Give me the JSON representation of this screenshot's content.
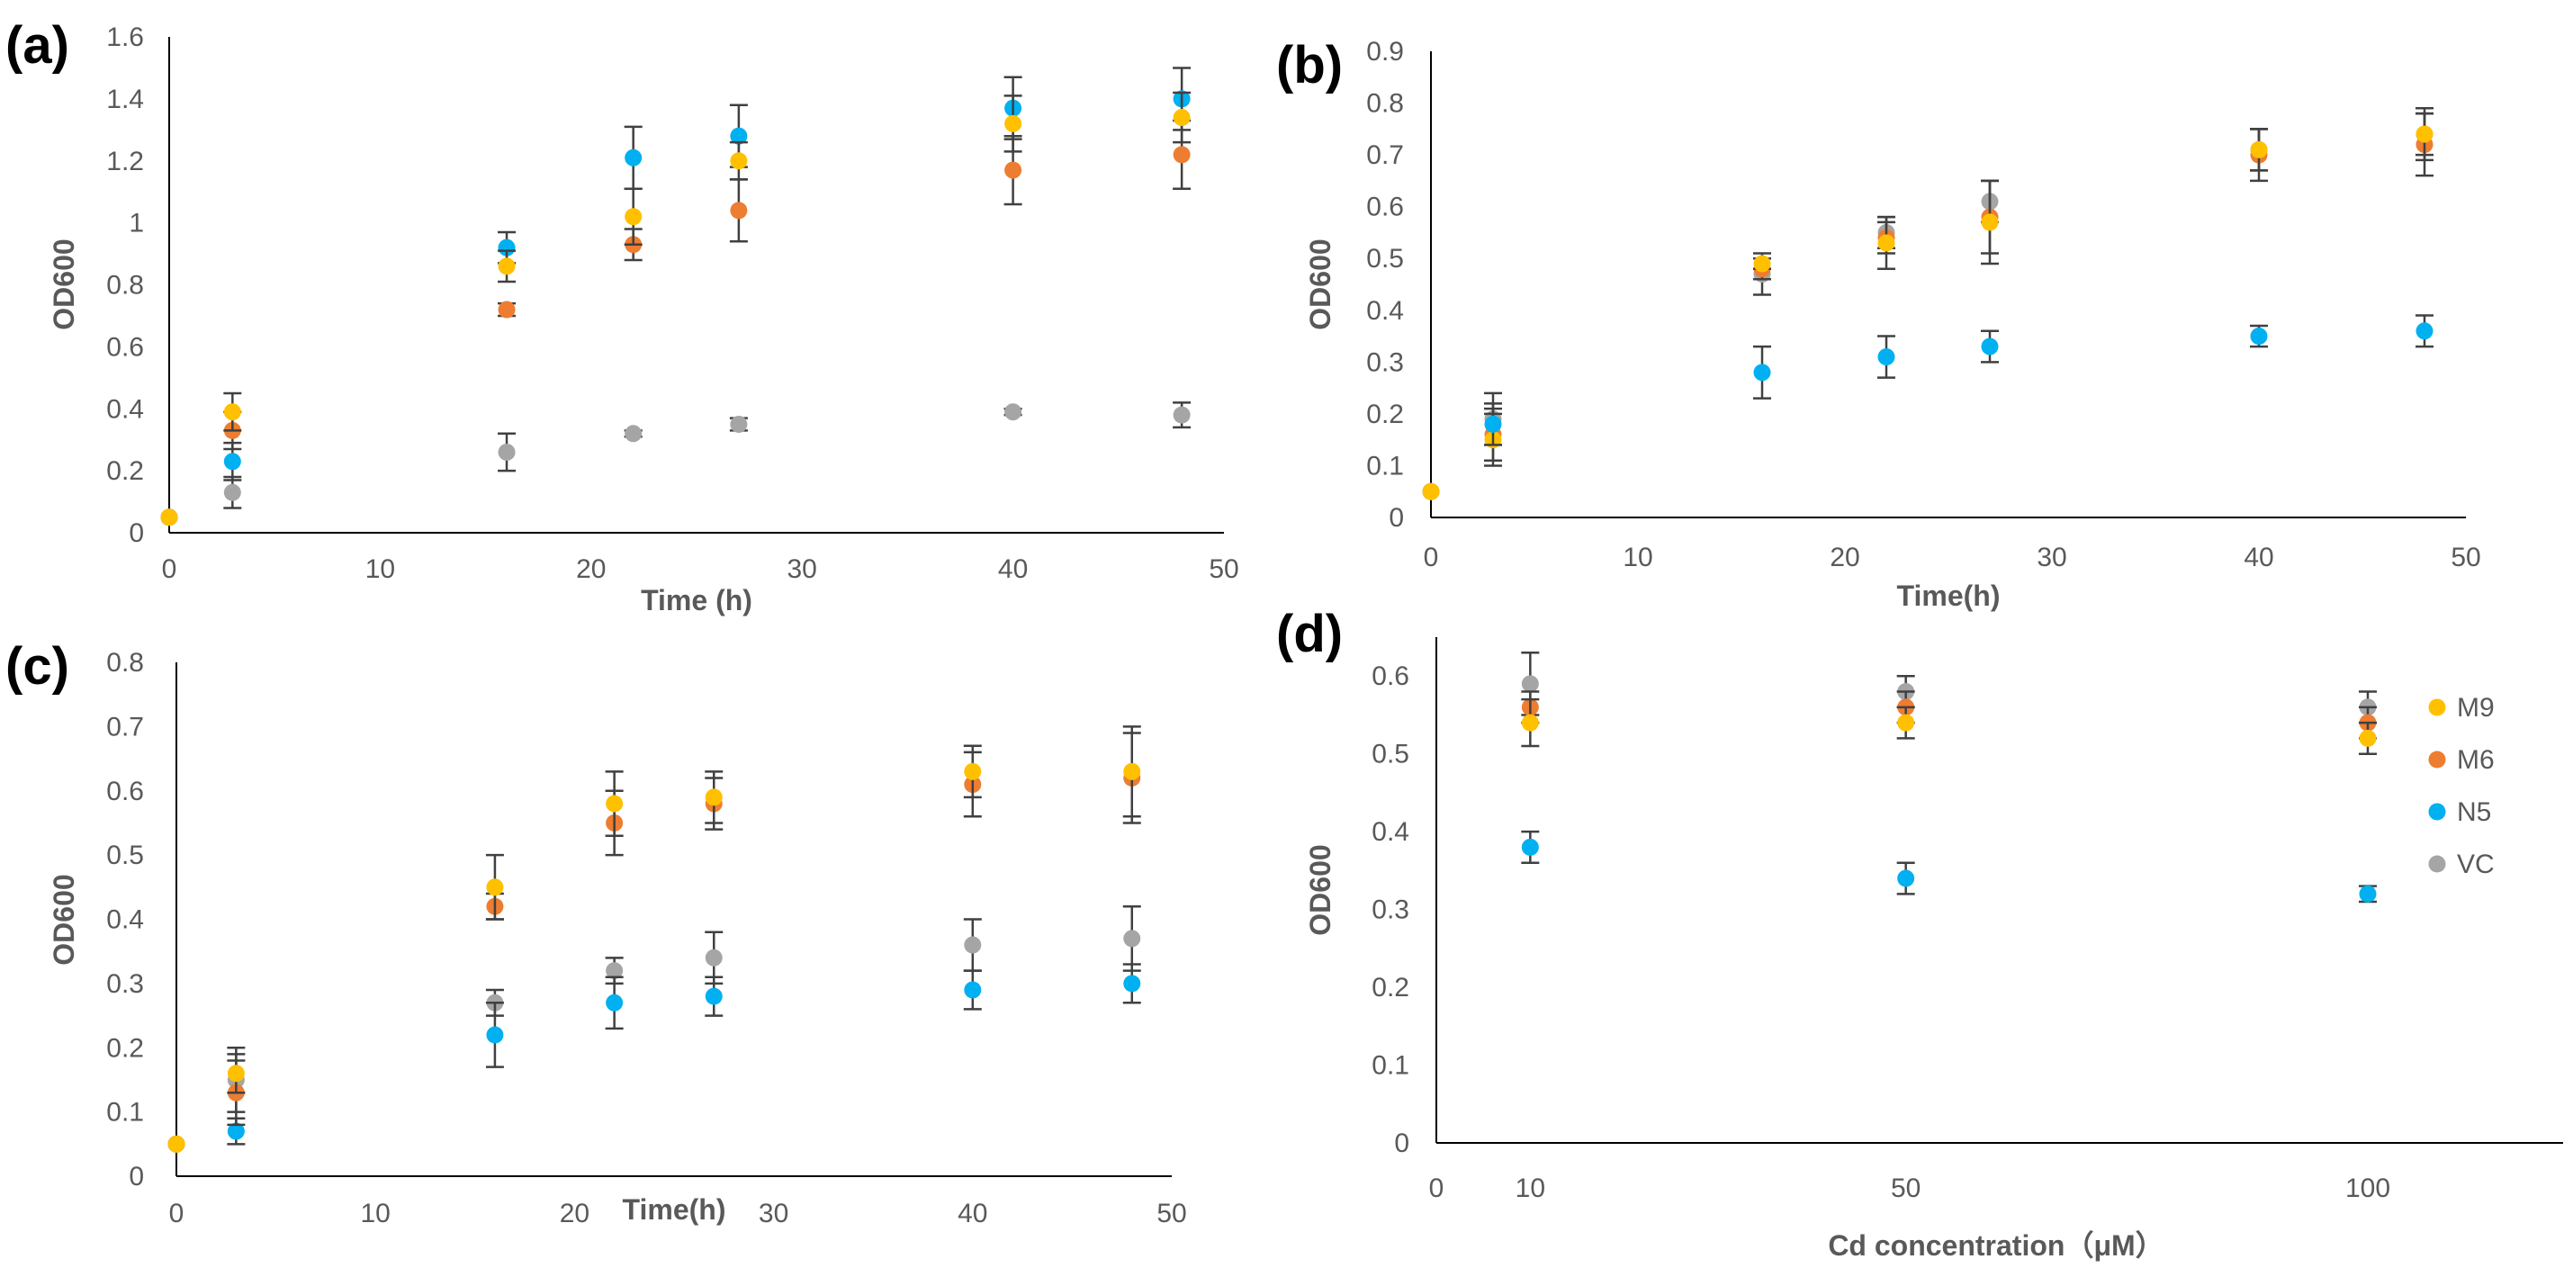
{
  "colors": {
    "M9": "#FFC000",
    "M6": "#ED7D31",
    "N5": "#00B0F0",
    "VC": "#A5A5A5",
    "error_bar": "#404040",
    "axis": "#000000",
    "text": "#595959"
  },
  "legend": {
    "placement": "right",
    "entries": [
      "M9",
      "M6",
      "N5",
      "VC"
    ]
  },
  "chart_data": [
    {
      "panel_label": "(a)",
      "type": "scatter",
      "xlabel": "Time (h)",
      "ylabel": "OD600",
      "xlim": [
        0,
        50
      ],
      "ylim": [
        0,
        1.6
      ],
      "xticks": [
        "0",
        "10",
        "20",
        "30",
        "40",
        "50"
      ],
      "yticks": [
        "0",
        "0.2",
        "0.4",
        "0.6",
        "0.8",
        "1",
        "1.2",
        "1.4",
        "1.6"
      ],
      "grid": false,
      "series": [
        {
          "name": "VC",
          "x": [
            0,
            3,
            16,
            22,
            27,
            40,
            48
          ],
          "y": [
            0.05,
            0.13,
            0.26,
            0.32,
            0.35,
            0.39,
            0.38
          ],
          "err": [
            0,
            0.05,
            0.06,
            0.01,
            0.02,
            0.01,
            0.04
          ]
        },
        {
          "name": "N5",
          "x": [
            0,
            3,
            16,
            22,
            27,
            40,
            48
          ],
          "y": [
            0.05,
            0.23,
            0.92,
            1.21,
            1.28,
            1.37,
            1.4
          ],
          "err": [
            0,
            0.06,
            0.05,
            0.1,
            0.1,
            0.1,
            0.1
          ]
        },
        {
          "name": "M6",
          "x": [
            0,
            3,
            16,
            22,
            27,
            40,
            48
          ],
          "y": [
            0.05,
            0.33,
            0.72,
            0.93,
            1.04,
            1.17,
            1.22
          ],
          "err": [
            0,
            0.06,
            0.02,
            0.05,
            0.1,
            0.11,
            0.11
          ]
        },
        {
          "name": "M9",
          "x": [
            0,
            3,
            16,
            22,
            27,
            40,
            48
          ],
          "y": [
            0.05,
            0.39,
            0.86,
            1.02,
            1.2,
            1.32,
            1.34
          ],
          "err": [
            0,
            0.06,
            0.05,
            0.09,
            0.06,
            0.09,
            0.08
          ]
        }
      ]
    },
    {
      "panel_label": "(b)",
      "type": "scatter",
      "xlabel": "Time(h)",
      "ylabel": "OD600",
      "xlim": [
        0,
        50
      ],
      "ylim": [
        0,
        0.9
      ],
      "xticks": [
        "0",
        "10",
        "20",
        "30",
        "40",
        "50"
      ],
      "yticks": [
        "0",
        "0.1",
        "0.2",
        "0.3",
        "0.4",
        "0.5",
        "0.6",
        "0.7",
        "0.8",
        "0.9"
      ],
      "grid": false,
      "series": [
        {
          "name": "VC",
          "x": [
            0,
            3,
            16,
            22,
            27,
            40,
            48
          ],
          "y": [
            0.05,
            0.19,
            0.47,
            0.55,
            0.61,
            0.71,
            0.74
          ],
          "err": [
            0,
            0.05,
            0.04,
            0.03,
            0.04,
            0.04,
            0.05
          ]
        },
        {
          "name": "M6",
          "x": [
            0,
            3,
            16,
            22,
            27,
            40,
            48
          ],
          "y": [
            0.05,
            0.16,
            0.48,
            0.54,
            0.58,
            0.7,
            0.72
          ],
          "err": [
            0,
            0.05,
            0.02,
            0.03,
            0.07,
            0.05,
            0.06
          ]
        },
        {
          "name": "M9",
          "x": [
            0,
            3,
            16,
            22,
            27,
            40,
            48
          ],
          "y": [
            0.05,
            0.15,
            0.49,
            0.53,
            0.57,
            0.71,
            0.74
          ],
          "err": [
            0,
            0.05,
            0.01,
            0.05,
            0.08,
            0.04,
            0.04
          ]
        },
        {
          "name": "N5",
          "x": [
            3,
            16,
            22,
            27,
            40,
            48
          ],
          "y": [
            0.18,
            0.28,
            0.31,
            0.33,
            0.35,
            0.36
          ],
          "err": [
            0.04,
            0.05,
            0.04,
            0.03,
            0.02,
            0.03
          ]
        }
      ]
    },
    {
      "panel_label": "(c)",
      "type": "scatter",
      "xlabel": "Time(h)",
      "ylabel": "OD600",
      "xlim": [
        0,
        50
      ],
      "ylim": [
        0,
        0.8
      ],
      "xticks": [
        "0",
        "10",
        "20",
        "30",
        "40",
        "50"
      ],
      "yticks": [
        "0",
        "0.1",
        "0.2",
        "0.3",
        "0.4",
        "0.5",
        "0.6",
        "0.7",
        "0.8"
      ],
      "grid": false,
      "series": [
        {
          "name": "VC",
          "x": [
            0,
            3,
            16,
            22,
            27,
            40,
            48
          ],
          "y": [
            0.05,
            0.15,
            0.27,
            0.32,
            0.34,
            0.36,
            0.37
          ],
          "err": [
            0,
            0.05,
            0.02,
            0.02,
            0.04,
            0.04,
            0.05
          ]
        },
        {
          "name": "N5",
          "x": [
            0,
            3,
            16,
            22,
            27,
            40,
            48
          ],
          "y": [
            0.05,
            0.07,
            0.22,
            0.27,
            0.28,
            0.29,
            0.3
          ],
          "err": [
            0,
            0.02,
            0.05,
            0.04,
            0.03,
            0.03,
            0.03
          ]
        },
        {
          "name": "M6",
          "x": [
            0,
            3,
            16,
            22,
            27,
            40,
            48
          ],
          "y": [
            0.05,
            0.13,
            0.42,
            0.55,
            0.58,
            0.61,
            0.62
          ],
          "err": [
            0,
            0.05,
            0.02,
            0.05,
            0.04,
            0.05,
            0.07
          ]
        },
        {
          "name": "M9",
          "x": [
            0,
            3,
            16,
            22,
            27,
            40,
            48
          ],
          "y": [
            0.05,
            0.16,
            0.45,
            0.58,
            0.59,
            0.63,
            0.63
          ],
          "err": [
            0,
            0.03,
            0.05,
            0.05,
            0.04,
            0.04,
            0.07
          ]
        }
      ]
    },
    {
      "panel_label": "(d)",
      "type": "scatter",
      "xlabel": "Cd concentration（μM）",
      "ylabel": "OD600",
      "xlim": [
        0,
        150
      ],
      "ylim": [
        0,
        0.65
      ],
      "xticks": [
        {
          "label": "0",
          "value": 0
        },
        {
          "label": "10",
          "value": 12.5
        },
        {
          "label": "50",
          "value": 62.5
        },
        {
          "label": "100",
          "value": 124
        }
      ],
      "yticks": [
        "0",
        "0.1",
        "0.2",
        "0.3",
        "0.4",
        "0.5",
        "0.6"
      ],
      "grid": false,
      "show_legend": true,
      "series": [
        {
          "name": "VC",
          "x": [
            12.5,
            62.5,
            124
          ],
          "y": [
            0.59,
            0.58,
            0.56
          ],
          "err": [
            0.04,
            0.02,
            0.02
          ]
        },
        {
          "name": "M6",
          "x": [
            12.5,
            62.5,
            124
          ],
          "y": [
            0.56,
            0.56,
            0.54
          ],
          "err": [
            0.02,
            0.02,
            0.02
          ]
        },
        {
          "name": "M9",
          "x": [
            12.5,
            62.5,
            124
          ],
          "y": [
            0.54,
            0.54,
            0.52
          ],
          "err": [
            0.03,
            0.02,
            0.02
          ]
        },
        {
          "name": "N5",
          "x": [
            12.5,
            62.5,
            124
          ],
          "y": [
            0.38,
            0.34,
            0.32
          ],
          "err": [
            0.02,
            0.02,
            0.01
          ]
        }
      ]
    }
  ]
}
